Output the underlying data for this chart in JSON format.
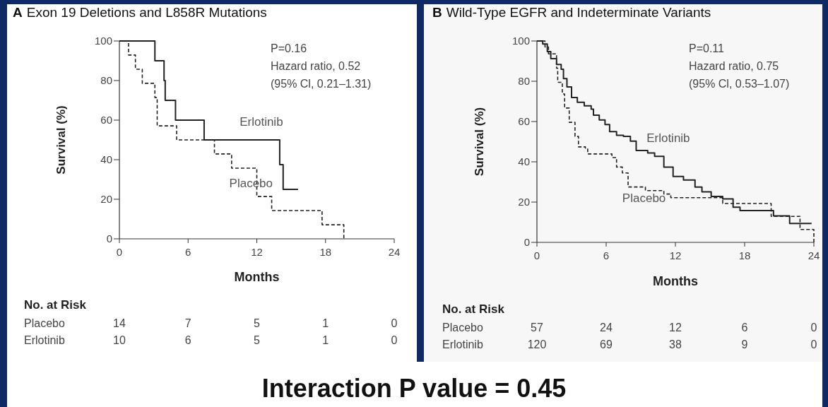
{
  "chart_data": [
    {
      "type": "step",
      "title": "A Exon 19 Deletions and L858R Mutations",
      "xlabel": "Months",
      "ylabel": "Survival (%)",
      "xlim": [
        0,
        24
      ],
      "xticks": [
        0,
        6,
        12,
        18,
        24
      ],
      "ylim": [
        0,
        100
      ],
      "yticks": [
        0,
        20,
        40,
        60,
        80,
        100
      ],
      "series": [
        {
          "name": "Erlotinib",
          "color": "#222222",
          "line_style": "solid",
          "x": [
            0,
            3.1,
            3.9,
            4.0,
            4.9,
            7.4,
            14.0,
            14.3,
            15.6
          ],
          "values": [
            100,
            90,
            80,
            70,
            60,
            50,
            37.5,
            25,
            25
          ]
        },
        {
          "name": "Placebo",
          "color": "#222222",
          "line_style": "dashed",
          "x": [
            0,
            0.8,
            1.4,
            2.0,
            3.1,
            3.3,
            5.0,
            8.3,
            9.8,
            12.0,
            13.3,
            17.7,
            19.6
          ],
          "values": [
            100,
            92.9,
            85.7,
            78.6,
            71.4,
            57.1,
            50,
            42.9,
            35.7,
            21.4,
            14.3,
            7.1,
            0
          ]
        }
      ],
      "annotations": [
        "P=0.16",
        "Hazard ratio, 0.52",
        "(95% Cl, 0.21–1.31)",
        "No. at Risk",
        "Placebo",
        "14",
        "7",
        "5",
        "1",
        "0",
        "Erlotinib",
        "10",
        "6",
        "5",
        "1",
        "0"
      ]
    },
    {
      "type": "step",
      "title": "B Wild-Type EGFR and Indeterminate Variants",
      "xlabel": "Months",
      "ylabel": "Survival (%)",
      "xlim": [
        0,
        24
      ],
      "xticks": [
        0,
        6,
        12,
        18,
        24
      ],
      "ylim": [
        0,
        100
      ],
      "yticks": [
        0,
        20,
        40,
        60,
        80,
        100
      ],
      "series": [
        {
          "name": "Erlotinib",
          "color": "#222222",
          "line_style": "solid",
          "x": [
            0,
            0.5,
            0.9,
            1.2,
            1.7,
            2.1,
            2.3,
            2.6,
            3.0,
            3.5,
            4.1,
            4.7,
            4.9,
            5.4,
            5.9,
            6.3,
            6.9,
            7.5,
            8.1,
            8.6,
            9.6,
            10.2,
            11.0,
            11.8,
            12.7,
            13.7,
            14.3,
            15.1,
            16.1,
            17.0,
            17.6,
            20.5,
            21.9,
            23.8
          ],
          "values": [
            100,
            98.5,
            94.7,
            91.2,
            88.3,
            86,
            81.3,
            77.2,
            71.9,
            69.6,
            67.8,
            66.1,
            63.2,
            60.8,
            58.5,
            55,
            53.2,
            52.6,
            50.3,
            45.6,
            44.4,
            42.7,
            37.4,
            32.7,
            31,
            27.5,
            25.1,
            22.8,
            21.6,
            17.5,
            15.8,
            13.2,
            9.4,
            9.4
          ]
        },
        {
          "name": "Placebo",
          "color": "#222222",
          "line_style": "dashed",
          "x": [
            0,
            0.7,
            1.0,
            1.7,
            1.8,
            2.2,
            2.4,
            2.8,
            3.3,
            3.6,
            4.2,
            4.4,
            6.1,
            6.5,
            6.9,
            7.4,
            7.9,
            9.4,
            11.0,
            11.6,
            16.1,
            20.3,
            22.8,
            24.0
          ],
          "values": [
            100,
            97,
            93.6,
            86.5,
            79.5,
            73.7,
            66.7,
            59.6,
            52.6,
            47.4,
            46.8,
            43.9,
            43.9,
            42.1,
            37.4,
            34.5,
            27.5,
            25.7,
            24,
            22.2,
            19.3,
            12.9,
            6.4,
            0
          ]
        }
      ],
      "annotations": [
        "P=0.11",
        "Hazard ratio, 0.75",
        "(95% Cl, 0.53–1.07)",
        "No. at Risk",
        "Placebo",
        "57",
        "24",
        "12",
        "6",
        "0",
        "Erlotinib",
        "120",
        "69",
        "38",
        "9",
        "0"
      ]
    },
    {
      "type": "other",
      "title": "Interaction P value = 0.45"
    }
  ]
}
